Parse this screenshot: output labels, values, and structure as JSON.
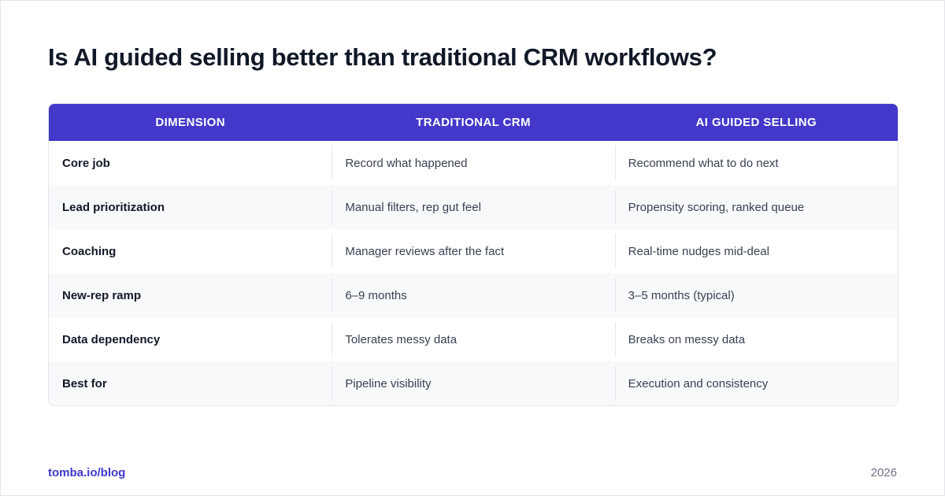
{
  "title": "Is AI guided selling better than traditional CRM workflows?",
  "colors": {
    "header_bg": "#4338ca",
    "accent": "#4338ca",
    "alt_row_bg": "#f8f9fb",
    "title_text": "#111827",
    "muted_text": "#6b7280"
  },
  "table": {
    "headers": [
      "DIMENSION",
      "TRADITIONAL CRM",
      "AI GUIDED SELLING"
    ],
    "rows": [
      {
        "dimension": "Core job",
        "traditional": "Record what happened",
        "ai": "Recommend what to do next"
      },
      {
        "dimension": "Lead prioritization",
        "traditional": "Manual filters, rep gut feel",
        "ai": "Propensity scoring, ranked queue"
      },
      {
        "dimension": "Coaching",
        "traditional": "Manager reviews after the fact",
        "ai": "Real-time nudges mid-deal"
      },
      {
        "dimension": "New-rep ramp",
        "traditional": "6–9 months",
        "ai": "3–5 months (typical)"
      },
      {
        "dimension": "Data dependency",
        "traditional": "Tolerates messy data",
        "ai": "Breaks on messy data"
      },
      {
        "dimension": "Best for",
        "traditional": "Pipeline visibility",
        "ai": "Execution and consistency"
      }
    ]
  },
  "footer": {
    "link": "tomba.io/blog",
    "year": "2026"
  }
}
